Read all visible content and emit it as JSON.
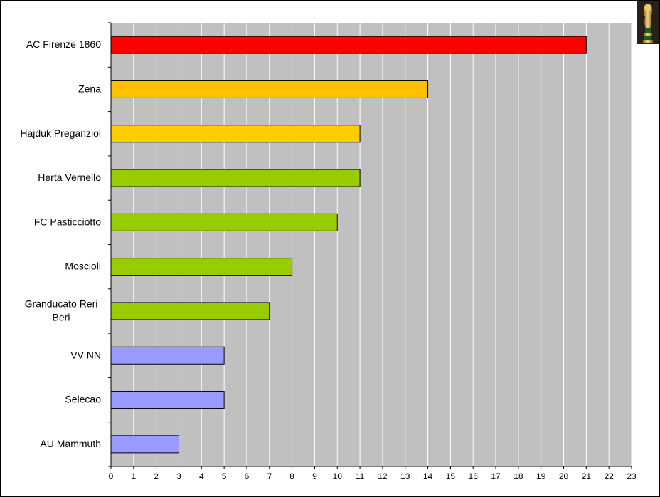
{
  "chart_data": {
    "type": "bar",
    "orientation": "horizontal",
    "title": "",
    "xlabel": "",
    "ylabel": "",
    "categories": [
      "AC Firenze 1860",
      "Zena",
      "Hajduk Preganziol",
      "Herta Vernello",
      "FC Pasticciotto",
      "Moscioli",
      "Granducato Reri Beri",
      "VV NN",
      "Selecao",
      "AU Mammuth"
    ],
    "values": [
      21,
      14,
      11,
      11,
      10,
      8,
      7,
      5,
      5,
      3
    ],
    "bar_colors": [
      "#ff0000",
      "#ffc000",
      "#ffcc00",
      "#99cc00",
      "#99cc00",
      "#99cc00",
      "#99cc00",
      "#9999ff",
      "#9999ff",
      "#9999ff"
    ],
    "xlim": [
      0,
      23
    ],
    "ticks": [
      0,
      1,
      2,
      3,
      4,
      5,
      6,
      7,
      8,
      9,
      10,
      11,
      12,
      13,
      14,
      15,
      16,
      17,
      18,
      19,
      20,
      21,
      22,
      23
    ],
    "grid": true,
    "legend": "none",
    "plot_background": "#c0c0c0",
    "gridline_color": "#ffffff"
  },
  "decoration": {
    "icon": "trophy-icon"
  }
}
